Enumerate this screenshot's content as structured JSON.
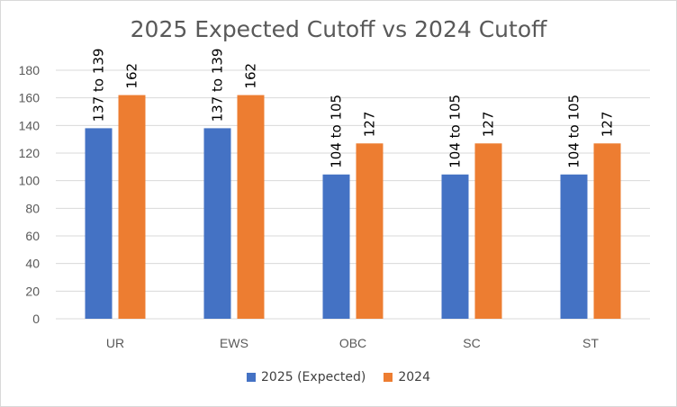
{
  "chart_data": {
    "type": "bar",
    "title": "2025 Expected Cutoff vs 2024 Cutoff",
    "categories": [
      "UR",
      "EWS",
      "OBC",
      "SC",
      "ST"
    ],
    "ylim": [
      0,
      180
    ],
    "yticks": [
      0,
      20,
      40,
      60,
      80,
      100,
      120,
      140,
      160,
      180
    ],
    "grid": true,
    "legend_position": "bottom",
    "series": [
      {
        "name": "2025 (Expected)",
        "color": "#4472C4",
        "values": [
          138,
          138,
          104.5,
          104.5,
          104.5
        ],
        "labels": [
          "137 to 139",
          "137 to 139",
          "104 to 105",
          "104 to 105",
          "104 to 105"
        ]
      },
      {
        "name": "2024",
        "color": "#ED7D31",
        "values": [
          162,
          162,
          127,
          127,
          127
        ],
        "labels": [
          "162",
          "162",
          "127",
          "127",
          "127"
        ]
      }
    ]
  }
}
